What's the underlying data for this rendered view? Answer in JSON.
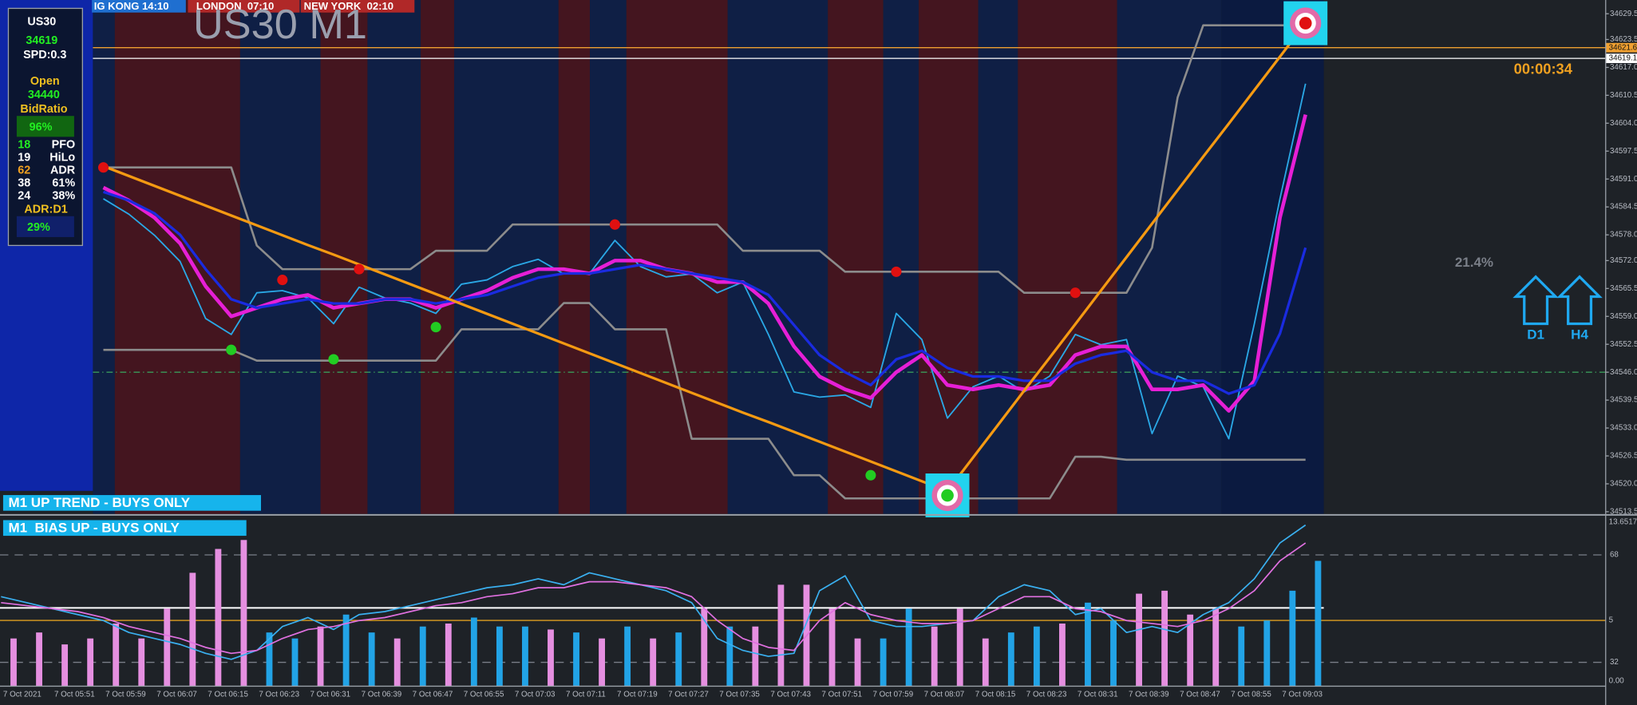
{
  "sessions": [
    "IG KONG 14:10",
    "LONDON  07:10",
    "NEW YORK  02:10"
  ],
  "info_panel": {
    "symbol": "US30",
    "price": "34619",
    "spread": "SPD:0.3",
    "open_label": "Open",
    "open": "34440",
    "bid_ratio_label": "BidRatio",
    "bid_ratio": "96%",
    "rows": [
      [
        "18",
        "PFO"
      ],
      [
        "19",
        "HiLo"
      ],
      [
        "62",
        "ADR"
      ],
      [
        "38",
        "61%"
      ],
      [
        "24",
        "38%"
      ]
    ],
    "adr_label": "ADR:D1",
    "adr": "29%"
  },
  "countdown": "00:00:34",
  "percent_label": "21.4%",
  "arrows": [
    "D1",
    "H4"
  ],
  "trend_banner": "M1 UP TREND - BUYS ONLY",
  "chart_data": [
    {
      "type": "line",
      "title": "US30 M1",
      "ylim": [
        34513.0,
        34632.7
      ],
      "yticks": [
        34629.5,
        34623.5,
        {
          "value": 34617,
          "label": "34617.0"
        },
        34610.5,
        {
          "value": 34604,
          "label": "34604.0"
        },
        34597.5,
        {
          "value": 34591,
          "label": "34591.0"
        },
        34584.5,
        {
          "value": 34578,
          "label": "34578.0"
        },
        {
          "value": 34572,
          "label": "34572.0"
        },
        34565.5,
        {
          "value": 34559,
          "label": "34559.0"
        },
        34552.5,
        {
          "value": 34546,
          "label": "34546.0"
        },
        34539.5,
        {
          "value": 34533,
          "label": "34533.0"
        },
        34526.5,
        {
          "value": 34520,
          "label": "34520.0"
        },
        34513.5
      ],
      "hlines": [
        {
          "value": 34621.6,
          "color": "#f0a030"
        },
        {
          "value": 34619.1,
          "color": "#ffffff"
        },
        {
          "value": 34546,
          "color": "#3a9a5a"
        }
      ],
      "series": [
        {
          "color": "#2aa8e6",
          "values": [
            null,
            null,
            null,
            null,
            34586.4,
            34582.8,
            34577.9,
            34571.8,
            34558.5,
            34554.8,
            34564.5,
            34565.0,
            34563.3,
            34557.3,
            34565.8,
            34563.3,
            34562.1,
            34559.7,
            34566.5,
            34567.5,
            34570.6,
            34572.3,
            34568.9,
            34568.9,
            34576.7,
            34570.6,
            34568.2,
            34568.9,
            34564.5,
            34567.0,
            34554.8,
            34541.4,
            34540.2,
            34540.7,
            34537.8,
            34559.7,
            34553.6,
            34535.3,
            34542.6,
            34545.1,
            34541.4,
            34545.1,
            34554.8,
            34552.4,
            34553.6,
            34531.7,
            34545.1,
            34542.6,
            34530.5,
            34557.3,
            34586.4,
            34613.2
          ]
        },
        {
          "color": "#e61fd6",
          "values": [
            null,
            null,
            null,
            null,
            34589,
            34586,
            34582,
            34576,
            34566,
            34559,
            34561,
            34563,
            34564,
            34561,
            34562,
            34563,
            34563,
            34561,
            34563,
            34565,
            34568,
            34570,
            34570,
            34569,
            34572,
            34572,
            34570,
            34569,
            34567,
            34567,
            34562,
            34552,
            34545,
            34542,
            34540,
            34546,
            34550,
            34543,
            34542,
            34543,
            34542,
            34543,
            34550,
            34552,
            34552,
            34542,
            34542,
            34543,
            34537,
            34544,
            34582,
            34606
          ]
        },
        {
          "color": "#1a2be0",
          "values": [
            null,
            null,
            null,
            null,
            34588,
            34586,
            34583,
            34578,
            34570,
            34563,
            34561,
            34562,
            34563,
            34562,
            34562,
            34563,
            34563,
            34562,
            34563,
            34564,
            34566,
            34568,
            34569,
            34569,
            34570,
            34571,
            34570,
            34569,
            34568,
            34567,
            34564,
            34557,
            34550,
            34546,
            34543,
            34549,
            34551,
            34547,
            34545,
            34545,
            34544,
            34544,
            34548,
            34550,
            34551,
            34546,
            34544,
            34544,
            34541,
            34543,
            34555,
            34575
          ]
        },
        {
          "color": "#8c8c8c",
          "values": [
            null,
            null,
            null,
            null,
            34593.7,
            34593.7,
            34593.7,
            34593.7,
            34593.7,
            34593.7,
            34575.5,
            34570,
            34570,
            34570,
            34570,
            34570,
            34570,
            34574.3,
            34574.3,
            34574.3,
            34580.4,
            34580.4,
            34580.4,
            34580.4,
            34580.4,
            34580.4,
            34580.4,
            34580.4,
            34580.4,
            34574.3,
            34574.3,
            34574.3,
            34574.3,
            34569.4,
            34569.4,
            34569.4,
            34569.4,
            34569.4,
            34569.4,
            34569.4,
            34564.5,
            34564.5,
            34564.5,
            34564.5,
            34564.5,
            34575,
            34610,
            34626.8,
            34626.8,
            34626.8,
            34626.8,
            34626.8
          ]
        },
        {
          "color": "#8c8c8c",
          "values": [
            null,
            null,
            null,
            null,
            34551.2,
            34551.2,
            34551.2,
            34551.2,
            34551.2,
            34551.2,
            34548.7,
            34548.7,
            34548.7,
            34548.7,
            34548.7,
            34548.7,
            34548.7,
            34548.7,
            34556,
            34556,
            34556,
            34556,
            34562.1,
            34562.1,
            34556,
            34556,
            34556,
            34530.5,
            34530.5,
            34530.5,
            34530.5,
            34522,
            34522,
            34516.6,
            34516.6,
            34516.6,
            34516.6,
            34516.6,
            34516.6,
            34516.6,
            34516.6,
            34516.6,
            34526.3,
            34526.3,
            34525.6,
            34525.6,
            34525.6,
            34525.6,
            34525.6,
            34525.6,
            34525.6,
            34525.6
          ]
        },
        {
          "color": "#f59a12",
          "values": [
            null,
            null,
            null,
            null,
            34594.0,
            34591.7,
            34589.4,
            34587.1,
            34584.8,
            34582.5,
            34580.2,
            34577.9,
            34575.6,
            34573.4,
            34571.1,
            34568.8,
            34566.5,
            34564.2,
            34561.9,
            34559.6,
            34557.3,
            34555.0,
            34552.7,
            34550.4,
            34548.1,
            34545.8,
            34543.5,
            34541.2,
            34538.9,
            34536.6,
            34534.4,
            34532.1,
            34529.8,
            34527.5,
            34525.2,
            34522.9,
            34520.6,
            34518.3,
            34526.1,
            34533.9,
            34541.7,
            34549.4,
            34557.2,
            34565.0,
            34572.8,
            34580.6,
            34588.4,
            34596.2,
            34603.9,
            34611.7,
            34619.5,
            34627.3
          ]
        }
      ],
      "markers": [
        {
          "color": "#e01010",
          "values": [
            null,
            null,
            null,
            null,
            34593.7,
            null,
            null,
            null,
            null,
            null,
            null,
            34567.5,
            null,
            null,
            34570,
            null,
            null,
            null,
            null,
            null,
            null,
            null,
            null,
            null,
            34580.4,
            null,
            null,
            null,
            null,
            null,
            null,
            null,
            null,
            null,
            null,
            34569.4,
            null,
            null,
            null,
            null,
            null,
            null,
            34564.5,
            null,
            null,
            null,
            null,
            null,
            null,
            null,
            null,
            null
          ]
        },
        {
          "color": "#22cc22",
          "values": [
            null,
            null,
            null,
            null,
            null,
            null,
            null,
            null,
            null,
            34551.2,
            null,
            null,
            null,
            34549,
            null,
            null,
            null,
            34556.5,
            null,
            null,
            null,
            null,
            null,
            null,
            null,
            null,
            null,
            null,
            null,
            null,
            null,
            null,
            null,
            null,
            34522,
            null,
            null,
            null,
            null,
            null,
            null,
            null,
            null,
            null,
            null,
            null,
            null,
            null,
            null,
            null,
            null,
            null
          ]
        },
        {
          "color": "#22cc22",
          "shape": "target",
          "values": [
            null,
            null,
            null,
            null,
            null,
            null,
            null,
            null,
            null,
            null,
            null,
            null,
            null,
            null,
            null,
            null,
            null,
            null,
            null,
            null,
            null,
            null,
            null,
            null,
            null,
            null,
            null,
            null,
            null,
            null,
            null,
            null,
            null,
            null,
            null,
            null,
            null,
            34517.3,
            null,
            null,
            null,
            null,
            null,
            null,
            null,
            null,
            null,
            null,
            null,
            null,
            null,
            null
          ]
        },
        {
          "color": "#e01010",
          "shape": "target",
          "values": [
            null,
            null,
            null,
            null,
            null,
            null,
            null,
            null,
            null,
            null,
            null,
            null,
            null,
            null,
            null,
            null,
            null,
            null,
            null,
            null,
            null,
            null,
            null,
            null,
            null,
            null,
            null,
            null,
            null,
            null,
            null,
            null,
            null,
            null,
            null,
            null,
            null,
            null,
            null,
            null,
            null,
            null,
            null,
            null,
            null,
            null,
            null,
            null,
            null,
            null,
            null,
            34627.3
          ]
        }
      ]
    },
    {
      "type": "bar",
      "title": "M1  BIAS UP - BUYS ONLY",
      "categories": [
        "7 Oct 2021",
        null,
        "7 Oct 05:51",
        null,
        "7 Oct 05:59",
        null,
        "7 Oct 06:07",
        null,
        "7 Oct 06:15",
        null,
        "7 Oct 06:23",
        null,
        "7 Oct 06:31",
        null,
        "7 Oct 06:39",
        null,
        "7 Oct 06:47",
        null,
        "7 Oct 06:55",
        null,
        "7 Oct 07:03",
        null,
        "7 Oct 07:11",
        null,
        "7 Oct 07:19",
        null,
        "7 Oct 07:27",
        null,
        "7 Oct 07:35",
        null,
        "7 Oct 07:43",
        null,
        "7 Oct 07:51",
        null,
        "7 Oct 07:59",
        null,
        "7 Oct 08:07",
        null,
        "7 Oct 08:15",
        null,
        "7 Oct 08:23",
        null,
        "7 Oct 08:31",
        null,
        "7 Oct 08:39",
        null,
        "7 Oct 08:47",
        null,
        "7 Oct 08:55",
        null,
        "7 Oct 09:03",
        null
      ],
      "values": [
        40,
        42,
        38,
        40,
        45,
        40,
        50,
        62,
        70,
        73,
        42,
        40,
        44,
        48,
        42,
        40,
        44,
        45,
        47,
        44,
        44,
        43,
        42,
        40,
        44,
        40,
        42,
        50,
        44,
        44,
        58,
        58,
        50,
        40,
        40,
        50,
        44,
        50,
        40,
        42,
        44,
        45,
        52,
        46,
        55,
        56,
        48,
        50,
        44,
        46,
        56,
        66
      ],
      "colors": [
        "#e58fe0",
        "#e58fe0",
        "#e58fe0",
        "#e58fe0",
        "#e58fe0",
        "#e58fe0",
        "#e58fe0",
        "#e58fe0",
        "#e58fe0",
        "#e58fe0",
        "#22a3e6",
        "#22a3e6",
        "#e58fe0",
        "#22a3e6",
        "#22a3e6",
        "#e58fe0",
        "#22a3e6",
        "#e58fe0",
        "#22a3e6",
        "#22a3e6",
        "#22a3e6",
        "#e58fe0",
        "#22a3e6",
        "#e58fe0",
        "#22a3e6",
        "#e58fe0",
        "#22a3e6",
        "#e58fe0",
        "#22a3e6",
        "#e58fe0",
        "#e58fe0",
        "#e58fe0",
        "#e58fe0",
        "#e58fe0",
        "#22a3e6",
        "#22a3e6",
        "#e58fe0",
        "#e58fe0",
        "#e58fe0",
        "#22a3e6",
        "#22a3e6",
        "#e58fe0",
        "#22a3e6",
        "#22a3e6",
        "#e58fe0",
        "#e58fe0",
        "#e58fe0",
        "#e58fe0",
        "#22a3e6",
        "#22a3e6",
        "#22a3e6",
        "#22a3e6"
      ],
      "lines": [
        {
          "color": "#3ab0f0",
          "values": [
            54,
            52,
            50,
            48,
            46,
            42,
            40,
            38,
            35,
            33,
            36,
            44,
            47,
            43,
            48,
            49,
            51,
            53,
            55,
            57,
            58,
            60,
            58,
            62,
            60,
            58,
            56,
            52,
            40,
            36,
            34,
            35,
            56,
            61,
            46,
            44,
            44,
            45,
            46,
            54,
            58,
            56,
            48,
            50,
            42,
            44,
            42,
            48,
            52,
            60,
            72,
            78
          ]
        },
        {
          "color": "#e070e0",
          "values": [
            52,
            51,
            50,
            49,
            47,
            44,
            42,
            40,
            37,
            35,
            36,
            40,
            43,
            44,
            46,
            47,
            49,
            51,
            52,
            54,
            55,
            57,
            57,
            59,
            59,
            58,
            57,
            54,
            46,
            40,
            37,
            36,
            46,
            52,
            48,
            46,
            45,
            45,
            46,
            50,
            54,
            54,
            50,
            49,
            46,
            45,
            44,
            46,
            50,
            56,
            66,
            72
          ]
        }
      ],
      "ylim": [
        24,
        80
      ],
      "yticks": [
        68,
        32
      ],
      "extra_labels": [
        "13.6517",
        "5",
        "0.00"
      ]
    }
  ]
}
